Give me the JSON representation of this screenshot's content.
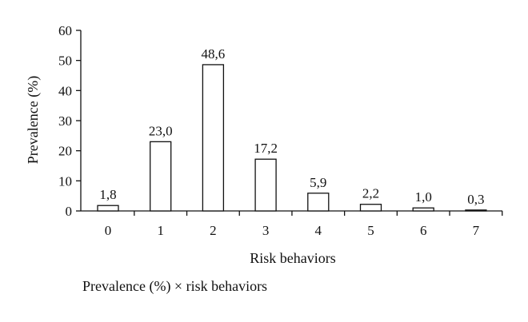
{
  "chart_data": {
    "type": "bar",
    "categories": [
      "0",
      "1",
      "2",
      "3",
      "4",
      "5",
      "6",
      "7"
    ],
    "values": [
      1.8,
      23.0,
      48.6,
      17.2,
      5.9,
      2.2,
      1.0,
      0.3
    ],
    "value_labels": [
      "1,8",
      "23,0",
      "48,6",
      "17,2",
      "5,9",
      "2,2",
      "1,0",
      "0,3"
    ],
    "xlabel": "Risk behaviors",
    "ylabel": "Prevalence (%)",
    "ylim": [
      0,
      60
    ],
    "yticks": [
      0,
      10,
      20,
      30,
      40,
      50,
      60
    ],
    "grid": false,
    "bar_fill": "#ffffff",
    "bar_stroke": "#111111"
  },
  "caption": "Prevalence (%) × risk behaviors"
}
